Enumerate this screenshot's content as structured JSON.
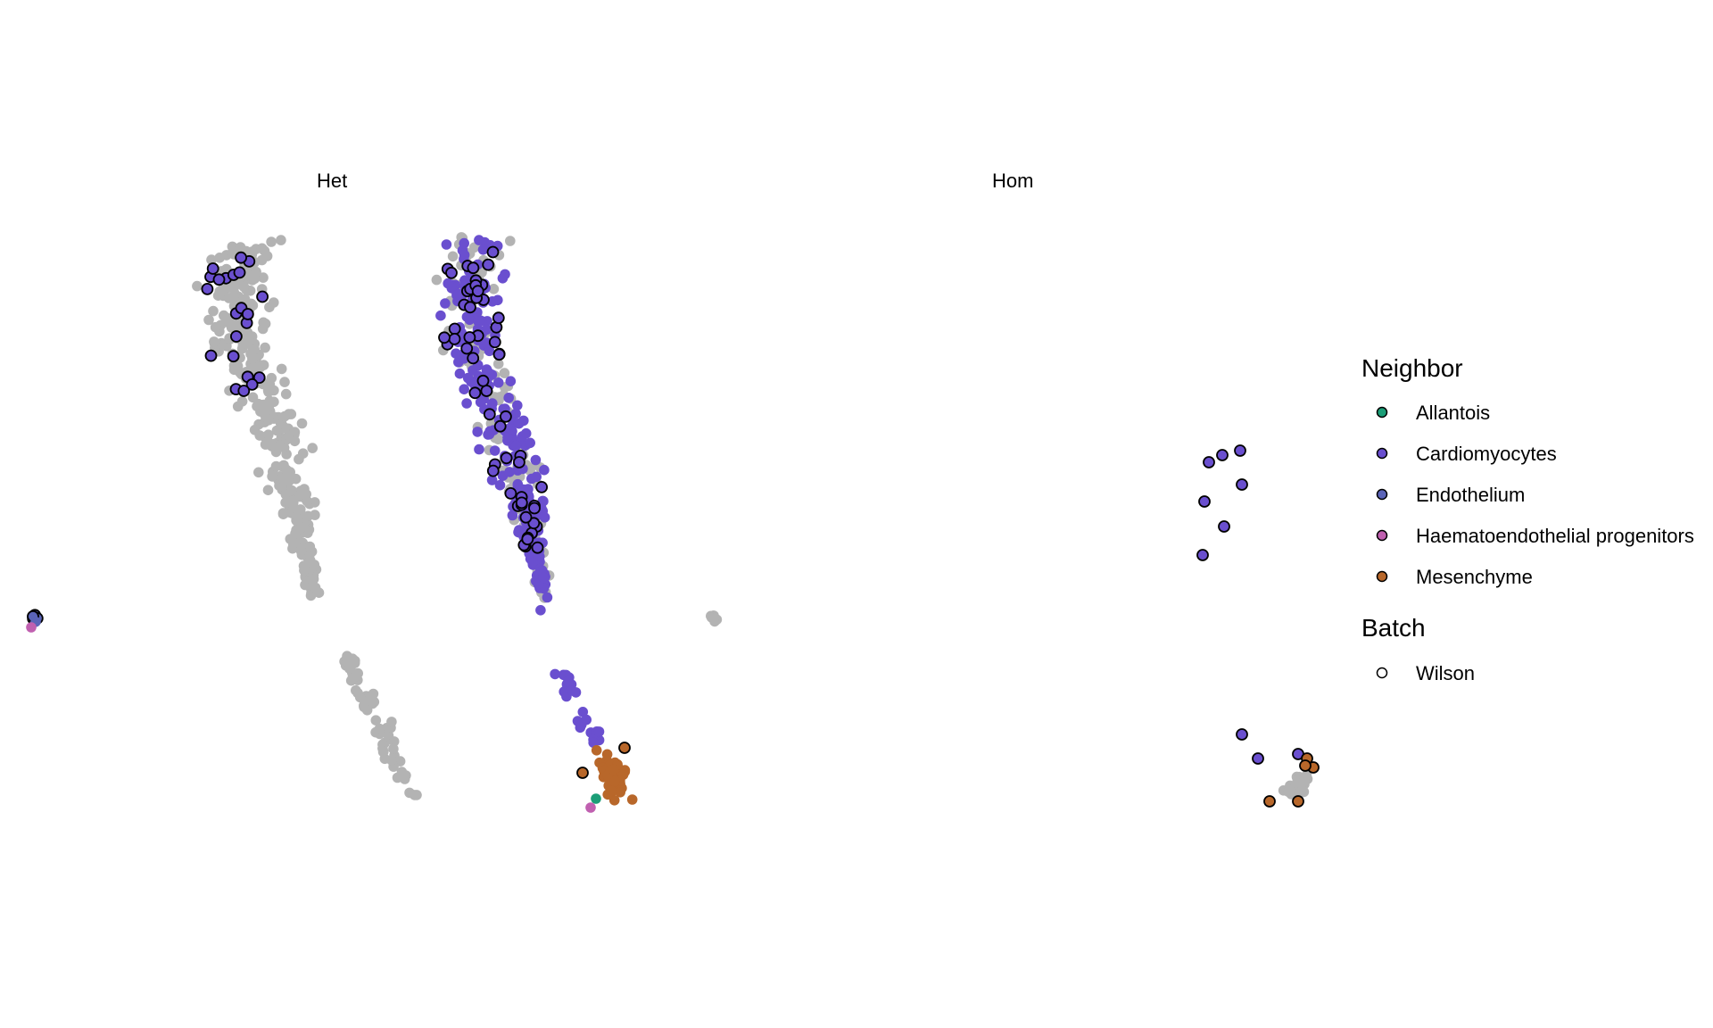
{
  "chart_data": {
    "type": "scatter",
    "panels": [
      {
        "title": "Het"
      },
      {
        "title": "Hom"
      }
    ],
    "legend": {
      "neighbor_title": "Neighbor",
      "neighbor_items": [
        {
          "label": "Allantois",
          "color": "#1b9e77"
        },
        {
          "label": "Cardiomyocytes",
          "color": "#6a4fcf"
        },
        {
          "label": "Endothelium",
          "color": "#5b64b8"
        },
        {
          "label": "Haematoendothelial progenitors",
          "color": "#c060b0"
        },
        {
          "label": "Mesenchyme",
          "color": "#b8672a"
        }
      ],
      "batch_title": "Batch",
      "batch_items": [
        {
          "label": "Wilson"
        }
      ]
    },
    "background_color": "#b3b3b3",
    "outline_color": "#000000",
    "axes": "none",
    "grid": false,
    "legend_position": "right"
  }
}
